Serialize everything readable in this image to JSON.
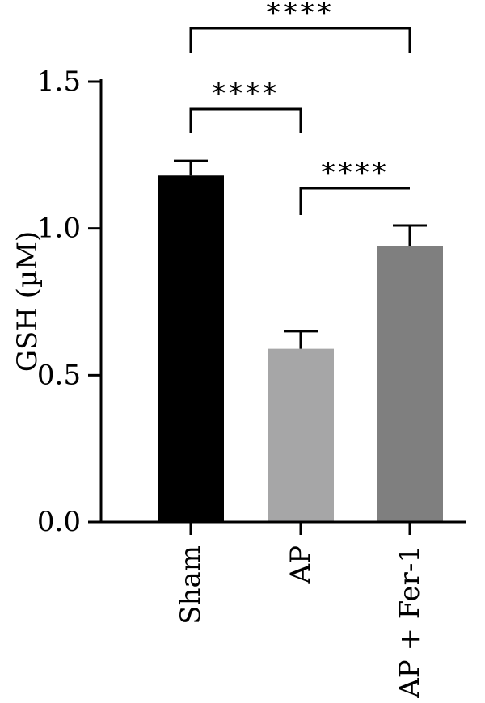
{
  "chart_data": {
    "type": "bar",
    "ylabel": "GSH (µM)",
    "xlabel": "",
    "ylim": [
      0,
      1.5
    ],
    "yticks": [
      {
        "value": 0.0,
        "label": "0.0"
      },
      {
        "value": 0.5,
        "label": "0.5"
      },
      {
        "value": 1.0,
        "label": "1.0"
      },
      {
        "value": 1.5,
        "label": "1.5"
      }
    ],
    "categories": [
      "Sham",
      "AP",
      "AP + Fer-1"
    ],
    "values": [
      1.18,
      0.59,
      0.94
    ],
    "errors": [
      0.05,
      0.06,
      0.07
    ],
    "colors": [
      "#000000",
      "#a6a6a7",
      "#7f7f7f"
    ],
    "grid": false,
    "significance": [
      {
        "from": 0,
        "to": 1,
        "label": "****"
      },
      {
        "from": 1,
        "to": 2,
        "label": "****"
      },
      {
        "from": 0,
        "to": 2,
        "label": "****"
      }
    ]
  }
}
